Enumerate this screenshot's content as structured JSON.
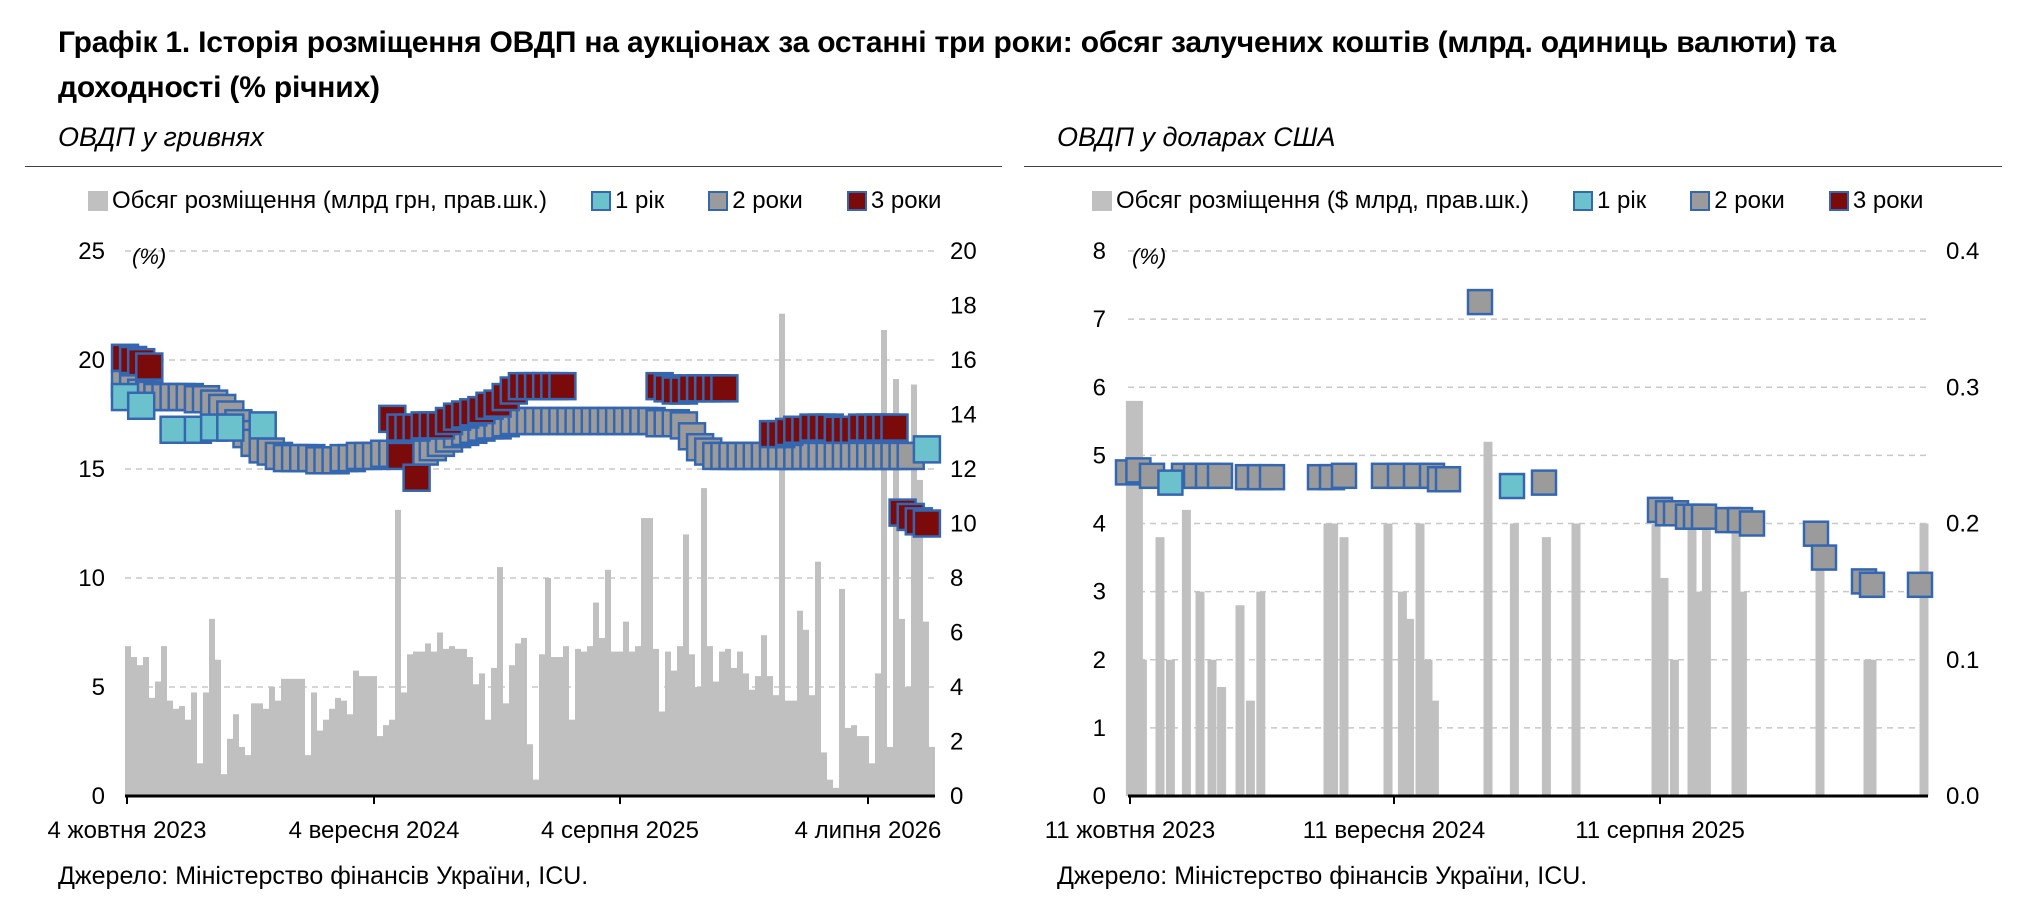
{
  "title": "Графік 1. Історія розміщення ОВДП на аукціонах за останні три роки: обсяг залучених коштів (млрд. одиниць валюти) та доходності (% річних)",
  "colors": {
    "volume": "#c0c0c0",
    "y1": "#6cc2cc",
    "y2": "#9b9b9b",
    "y3": "#7b0b0b",
    "marker_border": "#3566b0",
    "grid": "#c8c8c8"
  },
  "left": {
    "panel_title": "ОВДП у гривнях",
    "source": "Джерело: Міністерство фінансів України, ICU.",
    "legend": [
      "Обсяг розміщення (млрд грн, прав.шк.)",
      "1 рік",
      "2 роки",
      "3 роки"
    ]
  },
  "right": {
    "panel_title": "ОВДП у доларах США",
    "source": "Джерело: Міністерство фінансів України, ICU.",
    "legend": [
      "Обсяг розміщення ($ млрд, прав.шк.)",
      "1 рік",
      "2 роки",
      "3 роки"
    ]
  },
  "chart_data": [
    {
      "type": "bar+scatter",
      "title": "ОВДП у гривнях",
      "y_left_unit": "(%)",
      "y_left": {
        "lim": [
          0,
          25
        ],
        "ticks": [
          0,
          5,
          10,
          15,
          20,
          25
        ]
      },
      "y_right": {
        "lim": [
          0,
          20
        ],
        "ticks": [
          0,
          2,
          4,
          6,
          8,
          10,
          12,
          14,
          16,
          18,
          20
        ]
      },
      "x_ticks": [
        "4 жовтня 2023",
        "4 вересня 2024",
        "4 серпня 2025",
        "4 липня 2026"
      ],
      "grid": "horizontal dashed",
      "legend_position": "top",
      "series": [
        {
          "name": "Обсяг розміщення (млрд грн, прав.шк.)",
          "kind": "bar",
          "axis": "right",
          "values": [
            5.5,
            5.1,
            4.8,
            5.1,
            3.6,
            4.2,
            5.5,
            3.5,
            3.2,
            3.3,
            2.8,
            3.8,
            1.2,
            3.8,
            6.5,
            5.0,
            0.8,
            2.1,
            3.0,
            1.8,
            1.5,
            3.4,
            3.4,
            3.2,
            4.0,
            3.5,
            4.3,
            4.3,
            4.3,
            4.3,
            1.5,
            3.8,
            2.4,
            2.8,
            3.2,
            3.6,
            3.5,
            3.0,
            4.6,
            4.4,
            4.4,
            4.4,
            2.2,
            2.6,
            2.8,
            10.5,
            3.8,
            5.2,
            5.3,
            5.3,
            5.6,
            5.3,
            6.0,
            5.4,
            5.5,
            5.4,
            5.4,
            5.1,
            4.1,
            4.5,
            2.8,
            4.7,
            8.4,
            3.4,
            4.8,
            5.6,
            5.8,
            1.9,
            0.6,
            5.2,
            8.0,
            5.1,
            5.1,
            5.5,
            2.8,
            5.4,
            5.3,
            5.5,
            7.1,
            5.8,
            8.3,
            5.3,
            5.3,
            6.4,
            5.3,
            5.5,
            10.2,
            10.2,
            5.4,
            3.1,
            5.3,
            4.6,
            5.5,
            9.6,
            5.2,
            4.0,
            11.3,
            5.5,
            4.2,
            5.3,
            5.4,
            4.7,
            5.3,
            4.5,
            3.9,
            4.4,
            5.9,
            4.4,
            3.7,
            17.7,
            3.5,
            3.5,
            6.8,
            6.1,
            3.7,
            8.6,
            1.6,
            0.6,
            0.3,
            7.6,
            2.5,
            2.6,
            2.2,
            2.2,
            1.2,
            4.5,
            17.1,
            1.8,
            15.3,
            6.5,
            4.0,
            15.1,
            11.6,
            6.4,
            1.8
          ]
        },
        {
          "name": "1 рік",
          "kind": "scatter",
          "axis": "left",
          "x_frac": [
            0.0,
            0.02,
            0.06,
            0.09,
            0.11,
            0.13,
            0.17,
            0.99
          ],
          "values": [
            18.3,
            17.9,
            16.8,
            16.8,
            16.9,
            16.9,
            17.0,
            15.9
          ]
        },
        {
          "name": "2 роки",
          "kind": "scatter",
          "axis": "left",
          "x_frac": [
            0.0,
            0.01,
            0.02,
            0.03,
            0.04,
            0.05,
            0.06,
            0.07,
            0.08,
            0.09,
            0.1,
            0.11,
            0.12,
            0.13,
            0.14,
            0.15,
            0.16,
            0.17,
            0.18,
            0.19,
            0.2,
            0.21,
            0.22,
            0.23,
            0.24,
            0.25,
            0.26,
            0.27,
            0.28,
            0.29,
            0.3,
            0.31,
            0.32,
            0.33,
            0.34,
            0.35,
            0.36,
            0.37,
            0.38,
            0.39,
            0.4,
            0.41,
            0.42,
            0.43,
            0.44,
            0.45,
            0.46,
            0.47,
            0.48,
            0.49,
            0.5,
            0.51,
            0.52,
            0.53,
            0.54,
            0.55,
            0.56,
            0.57,
            0.58,
            0.59,
            0.6,
            0.61,
            0.62,
            0.63,
            0.64,
            0.65,
            0.66,
            0.67,
            0.68,
            0.69,
            0.7,
            0.71,
            0.72,
            0.73,
            0.74,
            0.75,
            0.76,
            0.77,
            0.78,
            0.79,
            0.8,
            0.81,
            0.82,
            0.83,
            0.84,
            0.85,
            0.86,
            0.87,
            0.88,
            0.89,
            0.9,
            0.91,
            0.92,
            0.93,
            0.94,
            0.95,
            0.96,
            0.97
          ],
          "values": [
            18.9,
            18.7,
            18.5,
            18.4,
            18.3,
            18.3,
            18.3,
            18.3,
            18.3,
            18.2,
            18.2,
            18.0,
            17.8,
            17.5,
            17.1,
            16.6,
            16.2,
            15.9,
            15.8,
            15.6,
            15.5,
            15.5,
            15.5,
            15.5,
            15.4,
            15.4,
            15.4,
            15.5,
            15.5,
            15.6,
            15.6,
            15.6,
            15.7,
            15.7,
            15.8,
            15.8,
            15.8,
            15.8,
            16.0,
            16.2,
            16.4,
            16.6,
            16.7,
            16.8,
            16.9,
            17.0,
            17.0,
            17.1,
            17.2,
            17.2,
            17.2,
            17.2,
            17.2,
            17.2,
            17.2,
            17.2,
            17.2,
            17.2,
            17.2,
            17.2,
            17.2,
            17.2,
            17.2,
            17.2,
            17.2,
            17.2,
            17.1,
            17.1,
            17.1,
            17.0,
            16.5,
            16.0,
            15.8,
            15.6,
            15.6,
            15.6,
            15.6,
            15.6,
            15.6,
            15.6,
            15.6,
            15.6,
            15.6,
            15.6,
            15.6,
            15.6,
            15.6,
            15.6,
            15.6,
            15.6,
            15.6,
            15.6,
            15.6,
            15.6,
            15.6,
            15.6,
            15.6,
            15.6
          ]
        },
        {
          "name": "3 роки",
          "kind": "scatter",
          "axis": "left",
          "x_frac": [
            0.0,
            0.01,
            0.02,
            0.03,
            0.33,
            0.34,
            0.35,
            0.36,
            0.37,
            0.38,
            0.39,
            0.4,
            0.41,
            0.42,
            0.43,
            0.44,
            0.45,
            0.46,
            0.47,
            0.48,
            0.49,
            0.5,
            0.51,
            0.52,
            0.53,
            0.54,
            0.66,
            0.67,
            0.68,
            0.69,
            0.7,
            0.71,
            0.72,
            0.73,
            0.74,
            0.8,
            0.81,
            0.82,
            0.83,
            0.84,
            0.85,
            0.86,
            0.87,
            0.88,
            0.89,
            0.9,
            0.91,
            0.92,
            0.93,
            0.94,
            0.95,
            0.96,
            0.97,
            0.98,
            0.99,
            0.34,
            0.36
          ],
          "values": [
            20.1,
            20.0,
            19.9,
            19.7,
            17.3,
            16.9,
            16.9,
            16.9,
            17.0,
            17.0,
            17.0,
            17.2,
            17.4,
            17.5,
            17.6,
            17.7,
            17.9,
            18.0,
            18.3,
            18.6,
            18.8,
            18.8,
            18.8,
            18.8,
            18.8,
            18.8,
            18.8,
            18.7,
            18.6,
            18.6,
            18.7,
            18.7,
            18.7,
            18.7,
            18.7,
            16.6,
            16.6,
            16.7,
            16.8,
            16.8,
            16.9,
            16.9,
            16.9,
            16.8,
            16.8,
            16.8,
            16.9,
            16.9,
            16.9,
            16.9,
            16.9,
            13.0,
            12.8,
            12.6,
            12.5,
            15.6,
            14.6
          ]
        }
      ]
    },
    {
      "type": "bar+scatter",
      "title": "ОВДП у доларах США",
      "y_left_unit": "(%)",
      "y_left": {
        "lim": [
          0,
          8
        ],
        "ticks": [
          0,
          1,
          2,
          3,
          4,
          5,
          6,
          7,
          8
        ]
      },
      "y_right": {
        "lim": [
          0,
          0.4
        ],
        "ticks": [
          "0.0",
          "0.1",
          "0.2",
          "0.3",
          "0.4"
        ]
      },
      "x_ticks": [
        "11 жовтня 2023",
        "11 вересня 2024",
        "11 серпня 2025"
      ],
      "grid": "horizontal dashed",
      "legend_position": "top",
      "series": [
        {
          "name": "Обсяг розміщення ($ млрд, прав.шк.)",
          "kind": "bar",
          "axis": "right",
          "x_frac": [
            0.003,
            0.013,
            0.018,
            0.04,
            0.053,
            0.073,
            0.09,
            0.105,
            0.117,
            0.14,
            0.153,
            0.166,
            0.25,
            0.257,
            0.27,
            0.325,
            0.343,
            0.352,
            0.365,
            0.37,
            0.375,
            0.383,
            0.45,
            0.483,
            0.523,
            0.56,
            0.66,
            0.67,
            0.683,
            0.705,
            0.713,
            0.723,
            0.76,
            0.768,
            0.865,
            0.925,
            0.93,
            0.995
          ],
          "values": [
            0.29,
            0.29,
            0.1,
            0.19,
            0.1,
            0.21,
            0.15,
            0.1,
            0.08,
            0.14,
            0.07,
            0.15,
            0.2,
            0.2,
            0.19,
            0.2,
            0.15,
            0.13,
            0.2,
            0.09,
            0.1,
            0.07,
            0.26,
            0.2,
            0.19,
            0.2,
            0.2,
            0.16,
            0.1,
            0.2,
            0.15,
            0.2,
            0.2,
            0.15,
            0.2,
            0.1,
            0.1,
            0.2
          ]
        },
        {
          "name": "1 рік",
          "kind": "scatter",
          "axis": "left",
          "x_frac": [
            0.053,
            0.48
          ],
          "values": [
            4.6,
            4.55
          ]
        },
        {
          "name": "2 роки",
          "kind": "scatter",
          "axis": "left",
          "x_frac": [
            0.0,
            0.013,
            0.03,
            0.07,
            0.085,
            0.1,
            0.115,
            0.15,
            0.165,
            0.18,
            0.24,
            0.255,
            0.27,
            0.32,
            0.34,
            0.36,
            0.38,
            0.39,
            0.4,
            0.44,
            0.52,
            0.665,
            0.675,
            0.685,
            0.7,
            0.71,
            0.72,
            0.75,
            0.765,
            0.78,
            0.86,
            0.87,
            0.92,
            0.93,
            0.99
          ],
          "values": [
            4.75,
            4.78,
            4.7,
            4.7,
            4.7,
            4.7,
            4.7,
            4.68,
            4.68,
            4.68,
            4.68,
            4.68,
            4.7,
            4.7,
            4.7,
            4.7,
            4.7,
            4.65,
            4.65,
            7.25,
            4.6,
            4.2,
            4.15,
            4.15,
            4.1,
            4.1,
            4.1,
            4.05,
            4.05,
            4.0,
            3.85,
            3.5,
            3.15,
            3.1,
            3.1
          ]
        }
      ]
    }
  ]
}
